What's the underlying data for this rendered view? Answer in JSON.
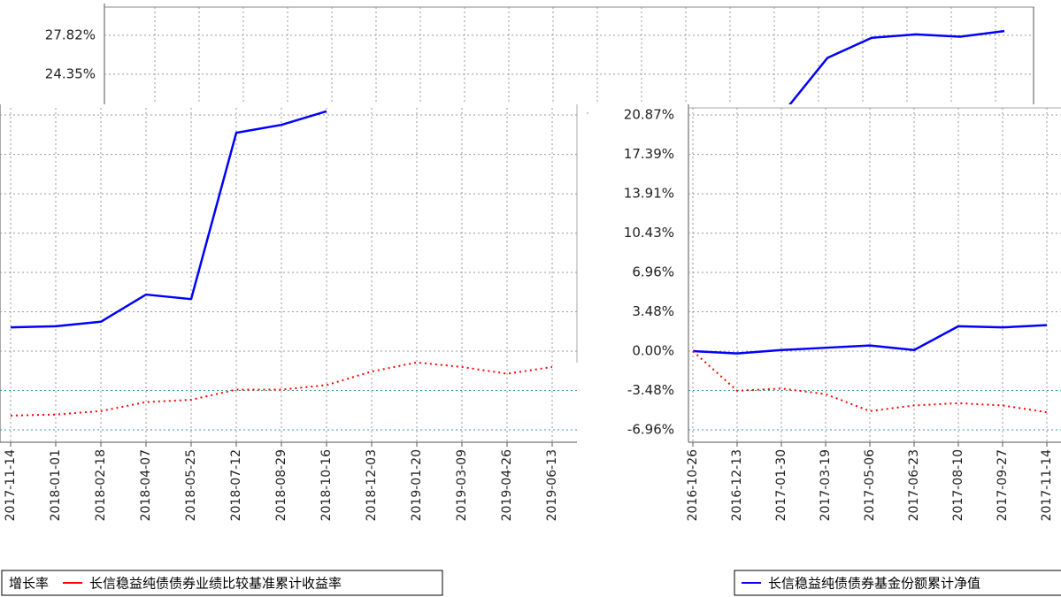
{
  "chart_data": [
    {
      "type": "line",
      "categories": [
        null,
        null,
        null,
        null,
        null,
        null
      ],
      "series": [
        {
          "color": "#0000ff",
          "values": [
            20.9,
            25.8,
            27.6,
            27.9,
            27.7,
            28.2
          ]
        }
      ],
      "ylim": [
        20.87,
        30.34
      ],
      "yticks": [
        {
          "value": 20.87,
          "label": "20.87%"
        },
        {
          "value": 24.35,
          "label": "24.35%"
        },
        {
          "value": 27.82,
          "label": "27.82%"
        }
      ],
      "grid": true
    },
    {
      "type": "line",
      "categories": [
        "2017-11-14",
        "2018-01-01",
        "2018-02-18",
        "2018-04-07",
        "2018-05-25",
        "2018-07-12",
        "2018-08-29",
        "2018-10-16",
        "2018-12-03",
        "2019-01-20",
        "2019-03-09",
        "2019-04-26",
        "2019-06-13"
      ],
      "series": [
        {
          "name": "增长率",
          "color": "#0000ff",
          "values": [
            2.1,
            2.2,
            2.6,
            5.0,
            4.6,
            19.3,
            20.0,
            21.2,
            null,
            null,
            null,
            null,
            null
          ]
        },
        {
          "name": "长信稳益纯债债券业绩比较基准累计收益率",
          "color": "#ff0000",
          "values": [
            -5.7,
            -5.6,
            -5.3,
            -4.5,
            -4.3,
            -3.4,
            -3.4,
            -3.0,
            -1.8,
            -1.0,
            -1.4,
            -2.0,
            -1.4
          ]
        }
      ],
      "ylim": [
        -8.05,
        21.5
      ],
      "yticks": [
        -6.96,
        -3.48,
        0,
        3.48,
        6.96,
        10.43,
        13.91,
        17.39,
        20.87
      ],
      "grid": true
    },
    {
      "type": "line",
      "categories": [
        "2016-10-26",
        "2016-12-13",
        "2017-01-30",
        "2017-03-19",
        "2017-05-06",
        "2017-06-23",
        "2017-08-10",
        "2017-09-27",
        "2017-11-14"
      ],
      "series": [
        {
          "name": "长信稳益纯债债券基金份额累计净值",
          "color": "#0000ff",
          "values": [
            0.0,
            -0.2,
            0.1,
            0.3,
            0.5,
            0.1,
            2.2,
            2.1,
            2.3
          ]
        },
        {
          "color": "#ff0000",
          "values": [
            0.0,
            -3.5,
            -3.3,
            -3.8,
            -5.3,
            -4.8,
            -4.6,
            -4.8,
            -5.4
          ]
        }
      ],
      "ylim": [
        -8.05,
        21.5
      ],
      "yticks": [
        {
          "value": -6.96,
          "label": "-6.96%"
        },
        {
          "value": -3.48,
          "label": "-3.48%"
        },
        {
          "value": 0,
          "label": "0.00%"
        },
        {
          "value": 3.48,
          "label": "3.48%"
        },
        {
          "value": 6.96,
          "label": "6.96%"
        },
        {
          "value": 10.43,
          "label": "10.43%"
        },
        {
          "value": 13.91,
          "label": "13.91%"
        },
        {
          "value": 17.39,
          "label": "17.39%"
        },
        {
          "value": 20.87,
          "label": "20.87%"
        }
      ],
      "grid": true
    }
  ]
}
